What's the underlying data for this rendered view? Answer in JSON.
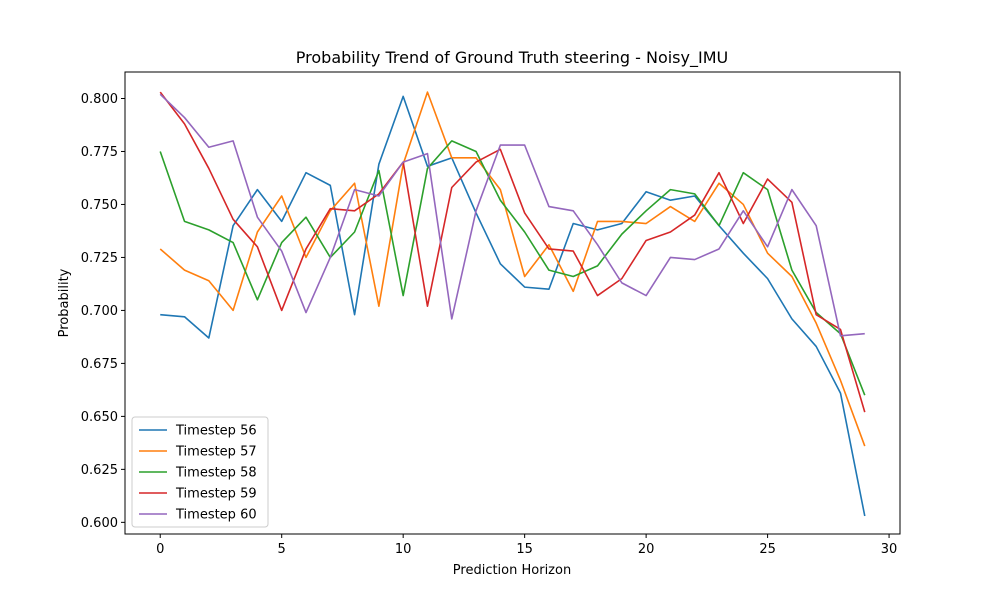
{
  "chart_data": {
    "type": "line",
    "title": "Probability Trend of Ground Truth steering - Noisy_IMU",
    "xlabel": "Prediction Horizon",
    "ylabel": "Probability",
    "xlim": [
      -1.45,
      30.45
    ],
    "ylim": [
      0.5945,
      0.8125
    ],
    "xticks": [
      0,
      5,
      10,
      15,
      20,
      25,
      30
    ],
    "yticks": [
      0.6,
      0.625,
      0.65,
      0.675,
      0.7,
      0.725,
      0.75,
      0.775,
      0.8
    ],
    "ytick_labels": [
      "0.600",
      "0.625",
      "0.650",
      "0.675",
      "0.700",
      "0.725",
      "0.750",
      "0.775",
      "0.800"
    ],
    "grid": false,
    "legend_position": "lower-left",
    "x": [
      0,
      1,
      2,
      3,
      4,
      5,
      6,
      7,
      8,
      9,
      10,
      11,
      12,
      13,
      14,
      15,
      16,
      17,
      18,
      19,
      20,
      21,
      22,
      23,
      24,
      25,
      26,
      27,
      28,
      29
    ],
    "series": [
      {
        "name": "Timestep 56",
        "color": "#1f77b4",
        "values": [
          0.698,
          0.697,
          0.687,
          0.74,
          0.757,
          0.742,
          0.765,
          0.759,
          0.698,
          0.769,
          0.801,
          0.768,
          0.772,
          0.746,
          0.722,
          0.711,
          0.71,
          0.741,
          0.738,
          0.741,
          0.756,
          0.752,
          0.754,
          0.74,
          0.727,
          0.715,
          0.696,
          0.683,
          0.661,
          0.603
        ]
      },
      {
        "name": "Timestep 57",
        "color": "#ff7f0e",
        "values": [
          0.729,
          0.719,
          0.714,
          0.7,
          0.737,
          0.754,
          0.725,
          0.747,
          0.76,
          0.702,
          0.769,
          0.803,
          0.772,
          0.772,
          0.757,
          0.716,
          0.731,
          0.709,
          0.742,
          0.742,
          0.741,
          0.749,
          0.742,
          0.76,
          0.75,
          0.727,
          0.716,
          0.694,
          0.667,
          0.636
        ]
      },
      {
        "name": "Timestep 58",
        "color": "#2ca02c",
        "values": [
          0.775,
          0.742,
          0.738,
          0.732,
          0.705,
          0.732,
          0.744,
          0.725,
          0.737,
          0.766,
          0.707,
          0.767,
          0.78,
          0.775,
          0.752,
          0.737,
          0.719,
          0.716,
          0.721,
          0.736,
          0.747,
          0.757,
          0.755,
          0.74,
          0.765,
          0.757,
          0.719,
          0.699,
          0.689,
          0.66
        ]
      },
      {
        "name": "Timestep 59",
        "color": "#d62728",
        "values": [
          0.803,
          0.788,
          0.767,
          0.743,
          0.73,
          0.7,
          0.729,
          0.748,
          0.747,
          0.755,
          0.77,
          0.702,
          0.758,
          0.77,
          0.776,
          0.746,
          0.729,
          0.728,
          0.707,
          0.715,
          0.733,
          0.737,
          0.745,
          0.765,
          0.741,
          0.762,
          0.751,
          0.698,
          0.691,
          0.652
        ]
      },
      {
        "name": "Timestep 60",
        "color": "#9467bd",
        "values": [
          0.802,
          0.791,
          0.777,
          0.78,
          0.744,
          0.728,
          0.699,
          0.725,
          0.757,
          0.754,
          0.77,
          0.774,
          0.696,
          0.747,
          0.778,
          0.778,
          0.749,
          0.747,
          0.731,
          0.713,
          0.707,
          0.725,
          0.724,
          0.729,
          0.747,
          0.73,
          0.757,
          0.74,
          0.688,
          0.689
        ]
      }
    ]
  }
}
